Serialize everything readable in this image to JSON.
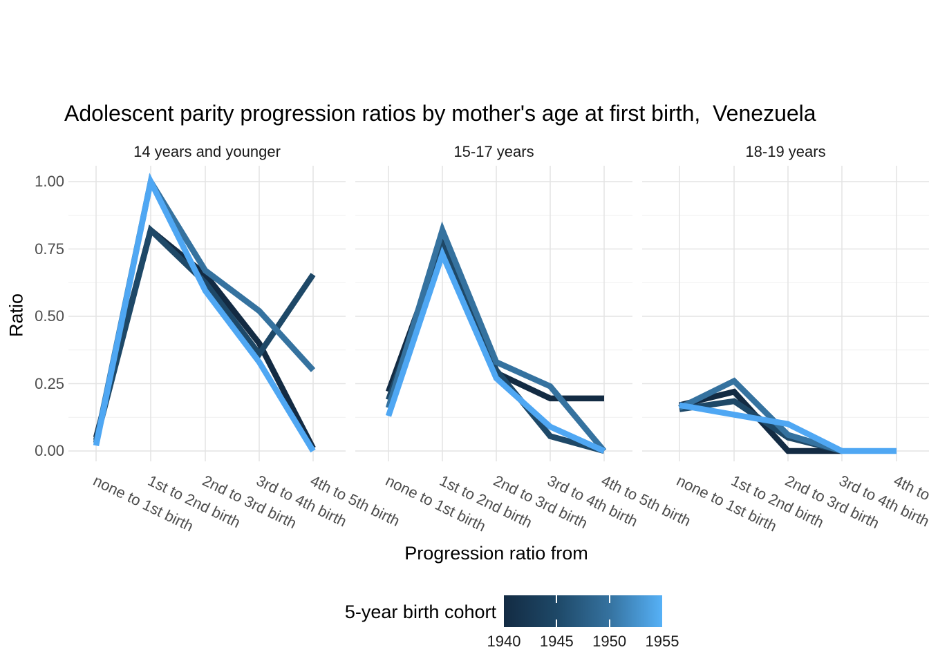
{
  "chart_data": {
    "type": "line",
    "title": "Adolescent parity progression ratios by mother's age at first birth,  Venezuela",
    "xlabel": "Progression ratio from",
    "ylabel": "Ratio",
    "ylim": [
      0.0,
      1.0
    ],
    "y_ticks": [
      0.0,
      0.25,
      0.5,
      0.75,
      1.0
    ],
    "y_tick_labels": [
      "0.00",
      "0.25",
      "0.50",
      "0.75",
      "1.00"
    ],
    "y_minor_ticks": [
      0.125,
      0.375,
      0.625,
      0.875
    ],
    "grid": true,
    "categories": [
      "none to 1st birth",
      "1st to 2nd birth",
      "2nd to 3rd birth",
      "3rd to 4th birth",
      "4th to 5th birth"
    ],
    "legend": {
      "title": "5-year birth cohort",
      "type": "colorbar",
      "position": "bottom",
      "labels": [
        "1940",
        "1945",
        "1950",
        "1955"
      ],
      "gradient_stops": [
        "#132B43",
        "#1E4867",
        "#35729F",
        "#56B1F7"
      ]
    },
    "series_colors": {
      "1940": "#132B43",
      "1945": "#1E4867",
      "1950": "#35729F",
      "1955": "#4FA7F3"
    },
    "facets": [
      {
        "label": "14 years and younger",
        "series": [
          {
            "name": "1940",
            "values": [
              0.05,
              0.82,
              0.655,
              0.4,
              0.01
            ]
          },
          {
            "name": "1945",
            "values": [
              0.04,
              0.82,
              0.625,
              0.36,
              0.655
            ]
          },
          {
            "name": "1950",
            "values": [
              0.03,
              1.0,
              0.67,
              0.52,
              0.3
            ]
          },
          {
            "name": "1955",
            "values": [
              0.02,
              1.0,
              0.595,
              0.33,
              0.0
            ]
          }
        ]
      },
      {
        "label": "15-17 years",
        "series": [
          {
            "name": "1940",
            "values": [
              0.22,
              0.77,
              0.29,
              0.195,
              0.195
            ]
          },
          {
            "name": "1945",
            "values": [
              0.19,
              0.76,
              0.3,
              0.055,
              0.0
            ]
          },
          {
            "name": "1950",
            "values": [
              0.16,
              0.82,
              0.33,
              0.24,
              0.0
            ]
          },
          {
            "name": "1955",
            "values": [
              0.13,
              0.73,
              0.27,
              0.09,
              0.0
            ]
          }
        ]
      },
      {
        "label": "18-19 years",
        "series": [
          {
            "name": "1940",
            "values": [
              0.17,
              0.22,
              0.0,
              0.0,
              null
            ]
          },
          {
            "name": "1945",
            "values": [
              0.155,
              0.185,
              0.05,
              0.0,
              null
            ]
          },
          {
            "name": "1950",
            "values": [
              0.16,
              0.26,
              0.06,
              0.0,
              null
            ]
          },
          {
            "name": "1955",
            "values": [
              0.17,
              0.135,
              0.1,
              0.0,
              0.0
            ]
          }
        ]
      }
    ]
  }
}
